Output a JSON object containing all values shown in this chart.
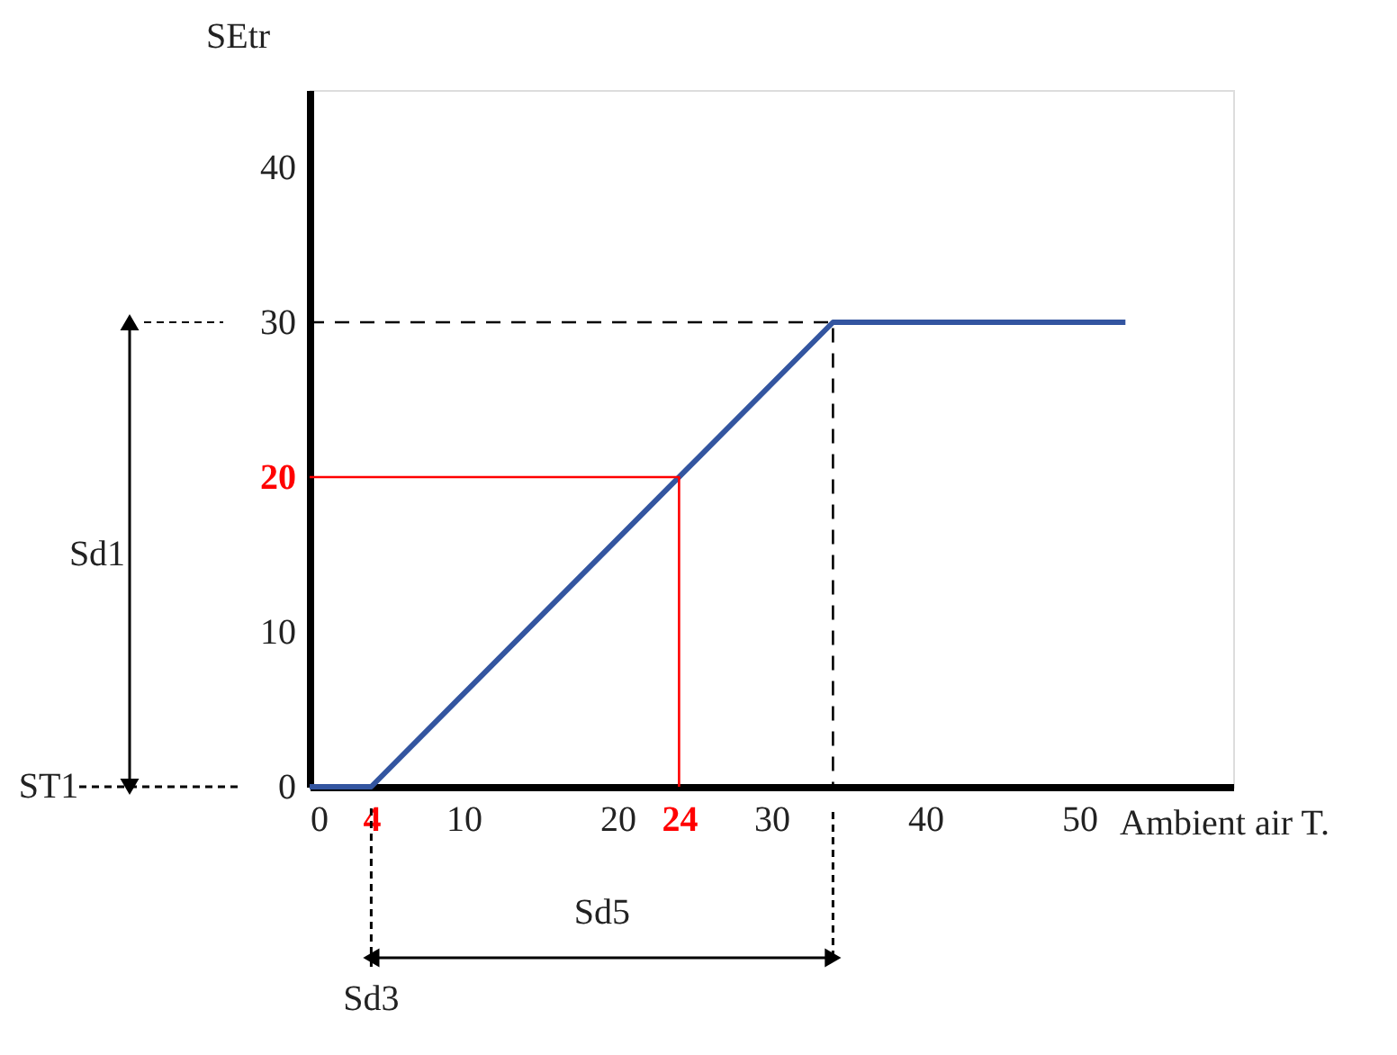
{
  "chart_data": {
    "type": "line",
    "xlabel": "Ambient air T.",
    "ylabel": "SEtr",
    "xlim": [
      0,
      60
    ],
    "ylim": [
      0,
      45
    ],
    "xticks": [
      0,
      {
        "value": 4,
        "label": "4"
      },
      10,
      20,
      {
        "value": 24,
        "label": "24"
      },
      30,
      40,
      50
    ],
    "yticks": [
      0,
      10,
      {
        "value": 20,
        "label": "20"
      },
      30,
      40
    ],
    "grid": false,
    "marker": "none",
    "series": [
      {
        "x": [
          0,
          4,
          34,
          53
        ],
        "values": [
          0,
          0,
          30,
          30
        ],
        "color": "#3355a0",
        "line_style": "solid"
      },
      {
        "x": [
          0,
          24,
          24
        ],
        "values": [
          20,
          20,
          0
        ],
        "color": "#ff0000",
        "line_style": "solid"
      },
      {
        "x": [
          0,
          34,
          34
        ],
        "values": [
          30,
          30,
          0
        ],
        "color": "#000000",
        "line_style": "dashed"
      }
    ],
    "annotations": [
      "Sd1",
      "Sd5",
      "Sd3",
      "ST1"
    ]
  }
}
